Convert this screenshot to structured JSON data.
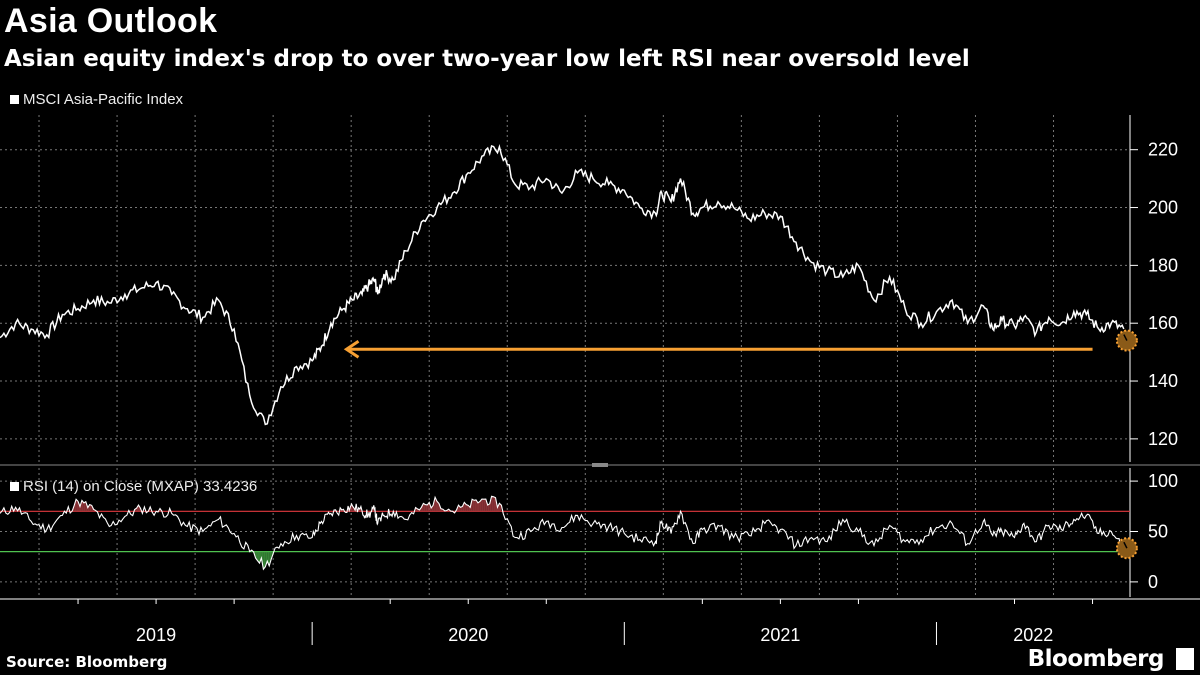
{
  "title": "Asia Outlook",
  "subtitle": "Asian equity index's drop to over two-year low left RSI near oversold level",
  "source": "Source: Bloomberg",
  "brand": "Bloomberg",
  "colors": {
    "background": "#000000",
    "line": "#ffffff",
    "arrow": "#f7a033",
    "overbought": "#e0393e",
    "oversold": "#4fc24f",
    "grid": "#777777"
  },
  "chart_data": [
    {
      "type": "line",
      "title": "MSCI Asia-Pacific Index",
      "legend": "MSCI Asia-Pacific Index",
      "ylim": [
        112,
        232
      ],
      "yticks": [
        120,
        140,
        160,
        180,
        200,
        220
      ],
      "x_range": [
        2019.0,
        2022.62
      ],
      "x_ticks": [
        "2019",
        "2020",
        "2021",
        "2022"
      ],
      "series": [
        {
          "name": "MSCI Asia-Pacific Index",
          "x": [
            2019.0,
            2019.05,
            2019.1,
            2019.15,
            2019.2,
            2019.25,
            2019.3,
            2019.35,
            2019.4,
            2019.45,
            2019.5,
            2019.55,
            2019.6,
            2019.65,
            2019.7,
            2019.75,
            2019.8,
            2019.85,
            2019.9,
            2019.95,
            2020.0,
            2020.03,
            2020.06,
            2020.1,
            2020.13,
            2020.16,
            2020.18,
            2020.2,
            2020.21,
            2020.23,
            2020.26,
            2020.3,
            2020.35,
            2020.4,
            2020.45,
            2020.5,
            2020.55,
            2020.6,
            2020.65,
            2020.7,
            2020.75,
            2020.8,
            2020.85,
            2020.9,
            2020.95,
            2021.0,
            2021.05,
            2021.1,
            2021.12,
            2021.15,
            2021.18,
            2021.22,
            2021.25,
            2021.3,
            2021.35,
            2021.4,
            2021.45,
            2021.5,
            2021.55,
            2021.6,
            2021.65,
            2021.7,
            2021.75,
            2021.8,
            2021.85,
            2021.9,
            2021.95,
            2022.0,
            2022.05,
            2022.1,
            2022.15,
            2022.18,
            2022.21,
            2022.25,
            2022.28,
            2022.32,
            2022.36,
            2022.4,
            2022.44,
            2022.48,
            2022.52,
            2022.56,
            2022.6
          ],
          "values": [
            155,
            160,
            158,
            156,
            163,
            165,
            168,
            167,
            170,
            172,
            174,
            170,
            165,
            162,
            168,
            158,
            135,
            125,
            138,
            145,
            147,
            152,
            160,
            165,
            168,
            170,
            173,
            175,
            170,
            177,
            175,
            185,
            195,
            200,
            205,
            212,
            218,
            221,
            208,
            207,
            210,
            205,
            212,
            210,
            208,
            206,
            200,
            198,
            205,
            202,
            210,
            198,
            200,
            202,
            200,
            196,
            198,
            197,
            188,
            181,
            178,
            176,
            180,
            168,
            176,
            165,
            160,
            164,
            168,
            160,
            166,
            158,
            161,
            159,
            162,
            157,
            162,
            160,
            164,
            163,
            158,
            160,
            158
          ]
        }
      ],
      "annotation": {
        "type": "arrow",
        "from": [
          2022.5,
          151
        ],
        "to": [
          2020.11,
          151
        ],
        "marker_at": [
          2022.61,
          154
        ]
      }
    },
    {
      "type": "line",
      "title": "RSI (14)  on Close (MXAP) 33.4236",
      "legend": "RSI (14)  on Close (MXAP) 33.4236",
      "ylim": [
        -15,
        113
      ],
      "yticks": [
        0,
        50,
        100
      ],
      "overbought": 70,
      "oversold": 30,
      "series": [
        {
          "name": "RSI (14) on Close (MXAP)",
          "x": [
            2019.0,
            2019.05,
            2019.1,
            2019.15,
            2019.2,
            2019.25,
            2019.3,
            2019.35,
            2019.4,
            2019.45,
            2019.5,
            2019.55,
            2019.6,
            2019.65,
            2019.7,
            2019.75,
            2019.8,
            2019.85,
            2019.9,
            2019.95,
            2020.0,
            2020.03,
            2020.06,
            2020.1,
            2020.13,
            2020.16,
            2020.18,
            2020.2,
            2020.21,
            2020.23,
            2020.26,
            2020.3,
            2020.35,
            2020.4,
            2020.45,
            2020.5,
            2020.55,
            2020.6,
            2020.65,
            2020.7,
            2020.75,
            2020.8,
            2020.85,
            2020.9,
            2020.95,
            2021.0,
            2021.05,
            2021.1,
            2021.12,
            2021.15,
            2021.18,
            2021.22,
            2021.25,
            2021.3,
            2021.35,
            2021.4,
            2021.45,
            2021.5,
            2021.55,
            2021.6,
            2021.65,
            2021.7,
            2021.75,
            2021.8,
            2021.85,
            2021.9,
            2021.95,
            2022.0,
            2022.05,
            2022.1,
            2022.15,
            2022.18,
            2022.21,
            2022.25,
            2022.28,
            2022.32,
            2022.36,
            2022.4,
            2022.44,
            2022.48,
            2022.52,
            2022.56,
            2022.6
          ],
          "values": [
            68,
            74,
            60,
            52,
            66,
            80,
            72,
            55,
            65,
            73,
            70,
            68,
            55,
            50,
            62,
            48,
            30,
            15,
            38,
            46,
            44,
            60,
            68,
            72,
            75,
            70,
            66,
            72,
            58,
            66,
            70,
            62,
            74,
            80,
            70,
            76,
            82,
            78,
            44,
            50,
            60,
            54,
            66,
            58,
            55,
            48,
            42,
            40,
            60,
            48,
            70,
            38,
            52,
            56,
            44,
            46,
            58,
            52,
            36,
            44,
            40,
            62,
            50,
            36,
            56,
            40,
            42,
            54,
            58,
            38,
            60,
            46,
            50,
            44,
            58,
            40,
            56,
            52,
            62,
            66,
            48,
            50,
            33
          ]
        }
      ],
      "marker_at": [
        2022.61,
        33.4
      ]
    }
  ]
}
